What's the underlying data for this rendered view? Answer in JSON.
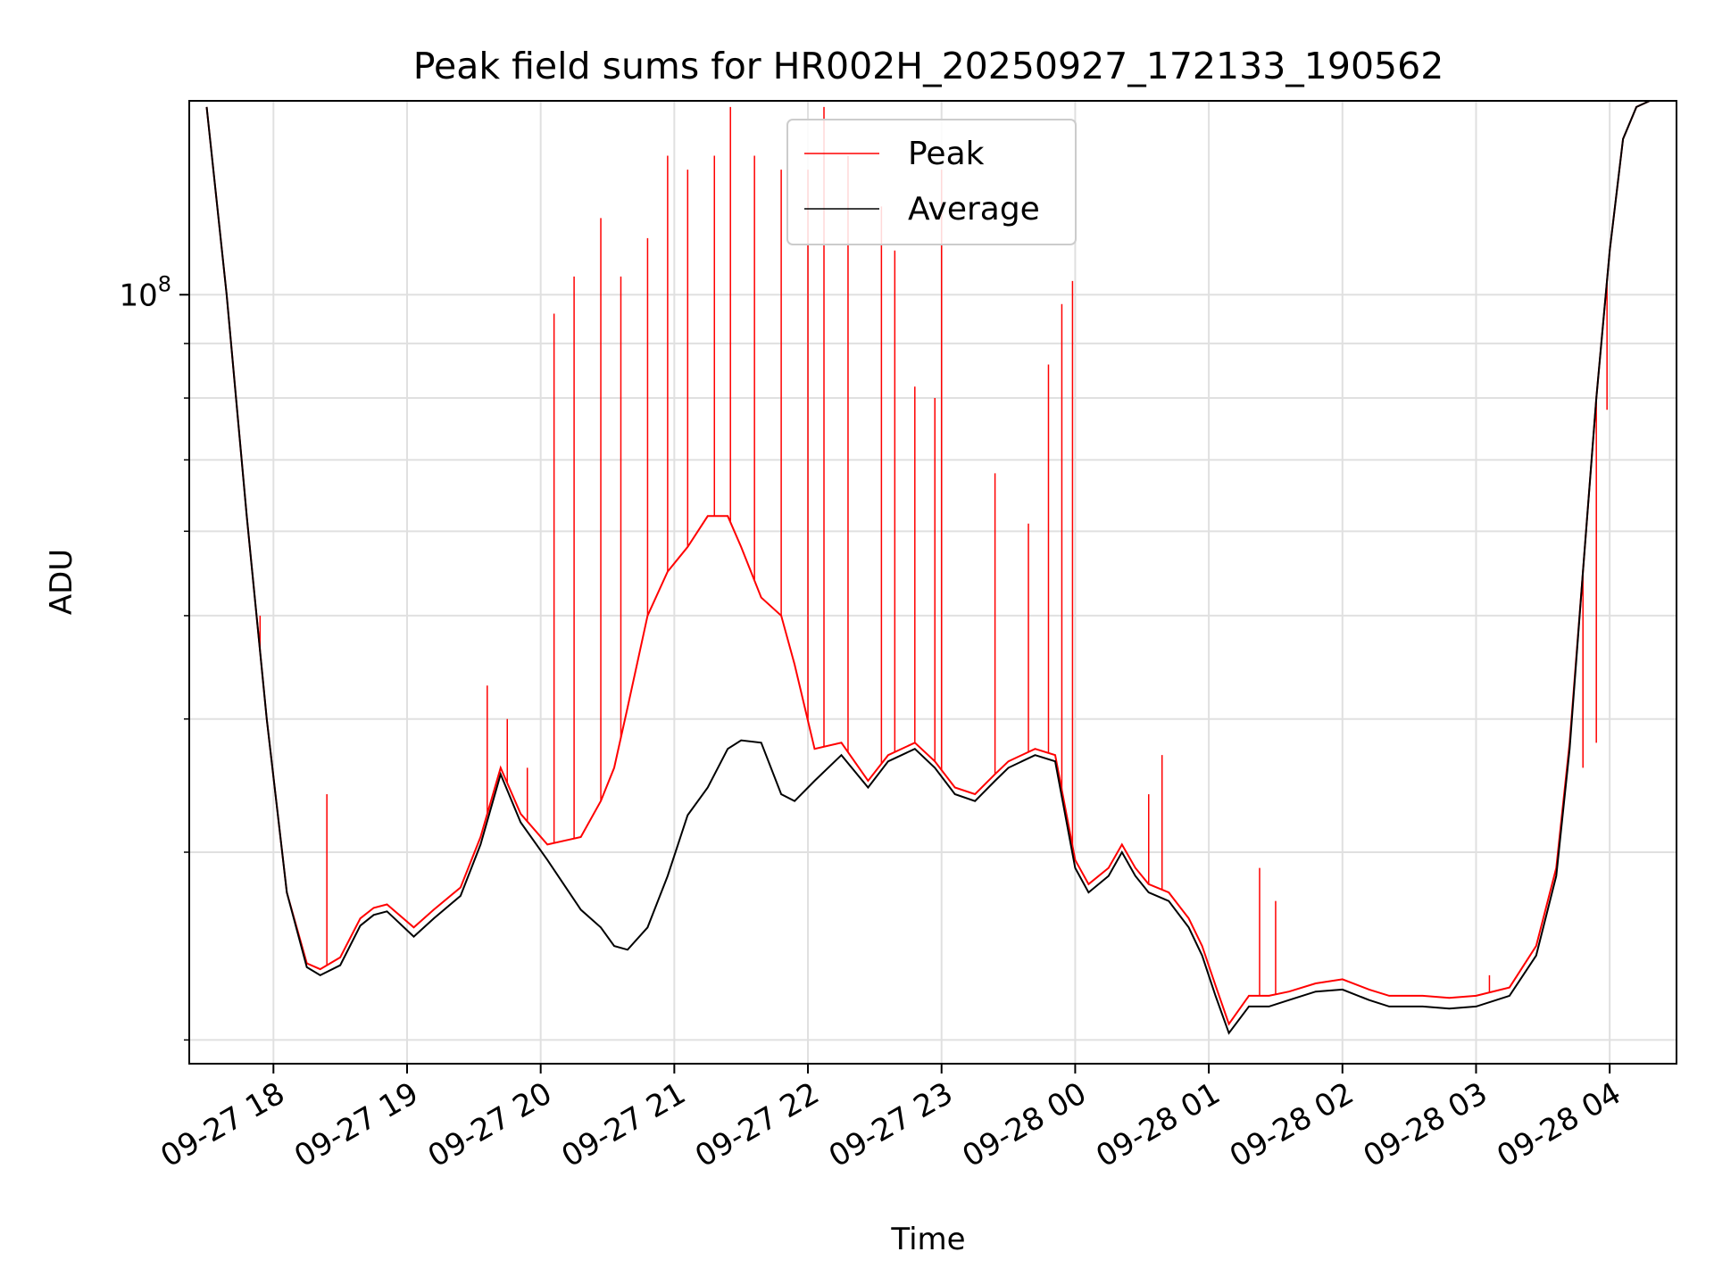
{
  "chart_data": {
    "type": "line",
    "title": "Peak field sums for HR002H_20250927_172133_190562",
    "xlabel": "Time",
    "ylabel": "ADU",
    "yscale": "log",
    "ylim": [
      19000000,
      152000000
    ],
    "xlim_hours": [
      17.37,
      28.5
    ],
    "grid": true,
    "legend": {
      "position": "upper-center",
      "entries": [
        "Peak",
        "Average"
      ]
    },
    "x_ticks": [
      {
        "label": "09-27 18",
        "hour": 18
      },
      {
        "label": "09-27 19",
        "hour": 19
      },
      {
        "label": "09-27 20",
        "hour": 20
      },
      {
        "label": "09-27 21",
        "hour": 21
      },
      {
        "label": "09-27 22",
        "hour": 22
      },
      {
        "label": "09-27 23",
        "hour": 23
      },
      {
        "label": "09-28 00",
        "hour": 24
      },
      {
        "label": "09-28 01",
        "hour": 25
      },
      {
        "label": "09-28 02",
        "hour": 26
      },
      {
        "label": "09-28 03",
        "hour": 27
      },
      {
        "label": "09-28 04",
        "hour": 28
      }
    ],
    "y_major_ticks": [
      {
        "value": 100000000,
        "base": "10",
        "exp": "8"
      }
    ],
    "y_minor_ticks": [
      20000000,
      30000000,
      40000000,
      50000000,
      60000000,
      70000000,
      80000000,
      90000000,
      200000000
    ],
    "series": [
      {
        "name": "Average",
        "color": "#000000",
        "x_hours": [
          17.5,
          17.65,
          17.8,
          17.95,
          18.1,
          18.25,
          18.35,
          18.5,
          18.65,
          18.75,
          18.85,
          19.05,
          19.2,
          19.4,
          19.55,
          19.7,
          19.85,
          20.05,
          20.3,
          20.45,
          20.55,
          20.65,
          20.8,
          20.95,
          21.1,
          21.25,
          21.4,
          21.5,
          21.65,
          21.8,
          21.9,
          22.05,
          22.25,
          22.45,
          22.6,
          22.8,
          22.95,
          23.1,
          23.25,
          23.4,
          23.5,
          23.7,
          23.85,
          24.0,
          24.1,
          24.25,
          24.35,
          24.45,
          24.55,
          24.7,
          24.85,
          24.95,
          25.05,
          25.15,
          25.3,
          25.45,
          25.6,
          25.8,
          26.0,
          26.2,
          26.35,
          26.6,
          26.8,
          27.0,
          27.25,
          27.45,
          27.6,
          27.7,
          27.8,
          27.9,
          28.0,
          28.1,
          28.2,
          28.3,
          28.4
        ],
        "values": [
          150000000,
          100000000,
          62000000,
          40000000,
          27500000,
          23400000,
          23000000,
          23500000,
          25600000,
          26200000,
          26400000,
          25000000,
          26000000,
          27300000,
          30500000,
          35500000,
          32000000,
          29500000,
          26500000,
          25500000,
          24500000,
          24300000,
          25500000,
          28500000,
          32500000,
          34500000,
          37500000,
          38200000,
          38000000,
          34000000,
          33500000,
          35000000,
          37000000,
          34500000,
          36500000,
          37500000,
          36000000,
          34000000,
          33500000,
          35000000,
          36000000,
          37000000,
          36500000,
          29000000,
          27500000,
          28500000,
          30000000,
          28500000,
          27500000,
          27000000,
          25500000,
          24000000,
          22000000,
          20300000,
          21500000,
          21500000,
          21800000,
          22200000,
          22300000,
          21800000,
          21500000,
          21500000,
          21400000,
          21500000,
          22000000,
          24000000,
          28500000,
          37500000,
          55000000,
          80000000,
          110000000,
          140000000,
          150000000,
          152000000,
          152000000
        ]
      },
      {
        "name": "Peak",
        "color": "#ff0000",
        "x_hours": [
          17.5,
          17.65,
          17.8,
          17.95,
          18.1,
          18.25,
          18.35,
          18.5,
          18.65,
          18.75,
          18.85,
          19.05,
          19.2,
          19.4,
          19.55,
          19.7,
          19.85,
          20.05,
          20.3,
          20.45,
          20.55,
          20.65,
          20.8,
          20.95,
          21.1,
          21.25,
          21.4,
          21.5,
          21.65,
          21.8,
          21.9,
          22.05,
          22.25,
          22.45,
          22.6,
          22.8,
          22.95,
          23.1,
          23.25,
          23.4,
          23.5,
          23.7,
          23.85,
          24.0,
          24.1,
          24.25,
          24.35,
          24.45,
          24.55,
          24.7,
          24.85,
          24.95,
          25.05,
          25.15,
          25.3,
          25.45,
          25.6,
          25.8,
          26.0,
          26.2,
          26.35,
          26.6,
          26.8,
          27.0,
          27.25,
          27.45,
          27.6,
          27.7,
          27.8,
          27.9,
          28.0,
          28.1,
          28.2,
          28.3,
          28.4
        ],
        "values": [
          150000000,
          100000000,
          62000000,
          40000000,
          27500000,
          23600000,
          23300000,
          23900000,
          26000000,
          26600000,
          26800000,
          25500000,
          26500000,
          27800000,
          31000000,
          36000000,
          32600000,
          30500000,
          31000000,
          33500000,
          36000000,
          41000000,
          50000000,
          55000000,
          58000000,
          62000000,
          62000000,
          58000000,
          52000000,
          50000000,
          45000000,
          37500000,
          38000000,
          35000000,
          37000000,
          38000000,
          36500000,
          34500000,
          34000000,
          35500000,
          36500000,
          37500000,
          37000000,
          29500000,
          28000000,
          29000000,
          30500000,
          29000000,
          28000000,
          27500000,
          26000000,
          24500000,
          22500000,
          20700000,
          22000000,
          22000000,
          22200000,
          22600000,
          22800000,
          22300000,
          22000000,
          22000000,
          21900000,
          22000000,
          22400000,
          24500000,
          29000000,
          38000000,
          55000000,
          80000000,
          110000000,
          140000000,
          150000000,
          152000000,
          152000000
        ],
        "spikes": [
          {
            "hour": 17.9,
            "value": 50000000
          },
          {
            "hour": 18.4,
            "value": 34000000
          },
          {
            "hour": 19.6,
            "value": 43000000
          },
          {
            "hour": 19.75,
            "value": 40000000
          },
          {
            "hour": 19.9,
            "value": 36000000
          },
          {
            "hour": 20.1,
            "value": 96000000
          },
          {
            "hour": 20.25,
            "value": 104000000
          },
          {
            "hour": 20.45,
            "value": 118000000
          },
          {
            "hour": 20.6,
            "value": 104000000
          },
          {
            "hour": 20.8,
            "value": 113000000
          },
          {
            "hour": 20.95,
            "value": 135000000
          },
          {
            "hour": 21.1,
            "value": 131000000
          },
          {
            "hour": 21.3,
            "value": 135000000
          },
          {
            "hour": 21.42,
            "value": 150000000
          },
          {
            "hour": 21.6,
            "value": 135000000
          },
          {
            "hour": 21.8,
            "value": 131000000
          },
          {
            "hour": 22.0,
            "value": 131000000
          },
          {
            "hour": 22.12,
            "value": 150000000
          },
          {
            "hour": 22.3,
            "value": 135000000
          },
          {
            "hour": 22.55,
            "value": 121000000
          },
          {
            "hour": 22.65,
            "value": 110000000
          },
          {
            "hour": 22.8,
            "value": 82000000
          },
          {
            "hour": 22.95,
            "value": 80000000
          },
          {
            "hour": 23.0,
            "value": 131000000
          },
          {
            "hour": 23.4,
            "value": 68000000
          },
          {
            "hour": 23.65,
            "value": 61000000
          },
          {
            "hour": 23.8,
            "value": 86000000
          },
          {
            "hour": 23.9,
            "value": 98000000
          },
          {
            "hour": 23.98,
            "value": 103000000
          },
          {
            "hour": 24.55,
            "value": 34000000
          },
          {
            "hour": 24.65,
            "value": 37000000
          },
          {
            "hour": 25.38,
            "value": 29000000
          },
          {
            "hour": 25.5,
            "value": 27000000
          },
          {
            "hour": 27.1,
            "value": 23000000
          },
          {
            "hour": 27.8,
            "value": 36000000
          },
          {
            "hour": 27.9,
            "value": 38000000
          },
          {
            "hour": 27.98,
            "value": 78000000
          }
        ]
      }
    ]
  }
}
